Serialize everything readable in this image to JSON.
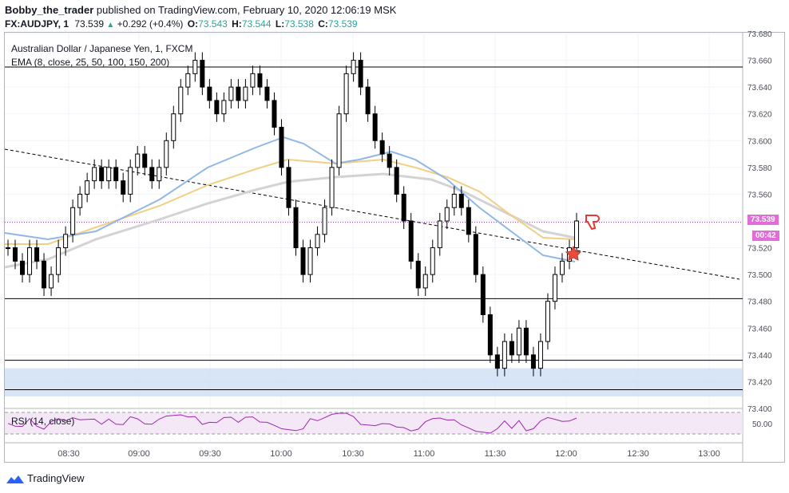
{
  "header": {
    "author": "Bobby_the_trader",
    "published": "published on TradingView.com, February 10, 2020 12:06:19 MSK",
    "symbol": "FX:AUDJPY, 1",
    "last": "73.539",
    "change": "+0.292 (+0.4%)",
    "o_label": "O:",
    "o_val": "73.543",
    "h_label": "H:",
    "h_val": "73.544",
    "l_label": "L:",
    "l_val": "73.538",
    "c_label": "C:",
    "c_val": "73.539"
  },
  "legend": {
    "instrument": "Australian Dollar / Japanese Yen, 1, FXCM",
    "ema": "EMA (8, close, 25, 50, 100, 150, 200)",
    "rsi": "RSI (14, close)"
  },
  "price_tag": "73.539",
  "time_tag": "00:42",
  "footer": {
    "brand": "TradingView"
  },
  "colors": {
    "up_candle": "#ffffff",
    "down_candle": "#000000",
    "ema_blue": "#90b7e6",
    "ema_yellow": "#f1cf84",
    "ema_grey": "#d3d3d3",
    "rsi_line": "#9c27b0",
    "price_line": "#9c27b0",
    "zone": "#c9dcf4",
    "tag_bg": "#e26cd8"
  },
  "chart_data": {
    "type": "candlestick",
    "ylim": [
      73.4,
      73.68
    ],
    "y_ticks": [
      "73.680",
      "73.660",
      "73.640",
      "73.620",
      "73.600",
      "73.580",
      "73.560",
      "73.540",
      "73.520",
      "73.500",
      "73.480",
      "73.460",
      "73.440",
      "73.420",
      "73.400"
    ],
    "x_ticks": [
      "08:30",
      "09:00",
      "09:30",
      "10:00",
      "10:30",
      "11:00",
      "11:30",
      "12:00",
      "12:30",
      "13:00"
    ],
    "horizontal_levels": [
      73.655,
      73.482,
      73.436,
      73.414
    ],
    "support_zone": [
      73.409,
      73.43
    ],
    "current_price": 73.539,
    "rsi_ticks": [
      "50.00"
    ],
    "close_series": [
      73.52,
      73.51,
      73.5,
      73.52,
      73.51,
      73.49,
      73.5,
      73.52,
      73.53,
      73.55,
      73.56,
      73.57,
      73.58,
      73.57,
      73.58,
      73.57,
      73.56,
      73.58,
      73.59,
      73.58,
      73.57,
      73.58,
      73.6,
      73.62,
      73.64,
      73.65,
      73.66,
      73.64,
      73.63,
      73.62,
      73.63,
      73.64,
      73.63,
      73.64,
      73.65,
      73.64,
      73.63,
      73.61,
      73.58,
      73.55,
      73.52,
      73.5,
      73.52,
      73.53,
      73.55,
      73.58,
      73.62,
      73.65,
      73.66,
      73.64,
      73.62,
      73.6,
      73.59,
      73.58,
      73.56,
      73.54,
      73.51,
      73.49,
      73.5,
      73.52,
      73.54,
      73.55,
      73.56,
      73.55,
      73.53,
      73.5,
      73.47,
      73.44,
      73.43,
      73.45,
      73.44,
      73.46,
      73.44,
      73.43,
      73.45,
      73.48,
      73.5,
      73.51,
      73.52,
      73.54
    ]
  }
}
